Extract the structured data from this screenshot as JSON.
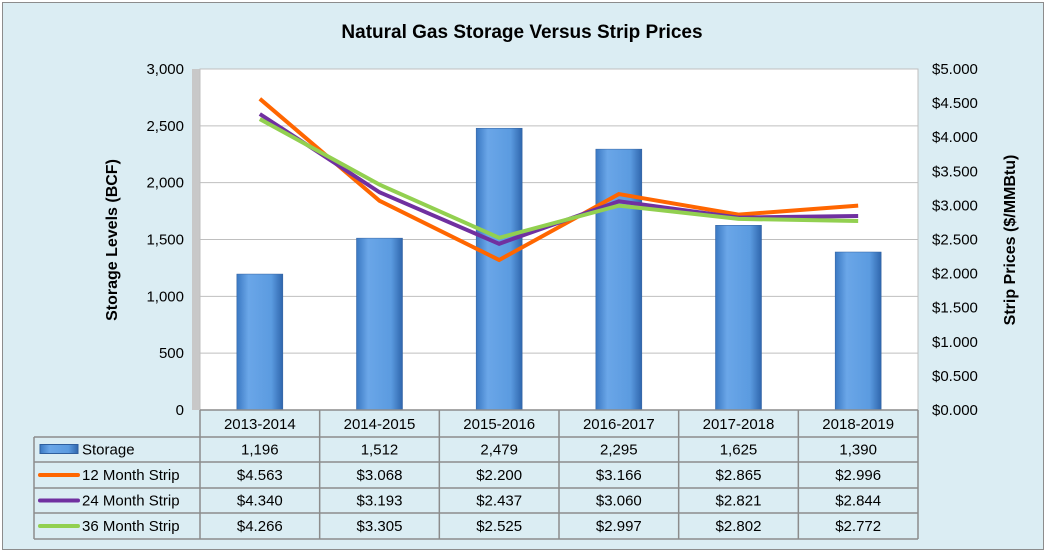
{
  "chart_data": {
    "type": "bar+line",
    "title": "Natural Gas Storage Versus Strip Prices",
    "ylabel": "Storage Levels (BCF)",
    "y2label": "Strip Prices ($/MMBtu)",
    "ylim": [
      0,
      3000
    ],
    "y2lim": [
      0,
      5
    ],
    "yticks": [
      "0",
      "500",
      "1,000",
      "1,500",
      "2,000",
      "2,500",
      "3,000"
    ],
    "y2ticks": [
      "$0.000",
      "$0.500",
      "$1.000",
      "$1.500",
      "$2.000",
      "$2.500",
      "$3.000",
      "$3.500",
      "$4.000",
      "$4.500",
      "$5.000"
    ],
    "grid": true,
    "legend": "data-table",
    "categories": [
      "2013-2014",
      "2014-2015",
      "2015-2016",
      "2016-2017",
      "2017-2018",
      "2018-2019"
    ],
    "series": [
      {
        "name": "Storage",
        "type": "bar",
        "axis": "left",
        "color": "#4f8fd6",
        "values": [
          1196,
          1512,
          2479,
          2295,
          1625,
          1390
        ],
        "labels": [
          "1,196",
          "1,512",
          "2,479",
          "2,295",
          "1,625",
          "1,390"
        ]
      },
      {
        "name": "12 Month Strip",
        "type": "line",
        "axis": "right",
        "color": "#ff6600",
        "values": [
          4.563,
          3.068,
          2.2,
          3.166,
          2.865,
          2.996
        ],
        "labels": [
          "$4.563",
          "$3.068",
          "$2.200",
          "$3.166",
          "$2.865",
          "$2.996"
        ]
      },
      {
        "name": "24 Month Strip",
        "type": "line",
        "axis": "right",
        "color": "#7030a0",
        "values": [
          4.34,
          3.193,
          2.437,
          3.06,
          2.821,
          2.844
        ],
        "labels": [
          "$4.340",
          "$3.193",
          "$2.437",
          "$3.060",
          "$2.821",
          "$2.844"
        ]
      },
      {
        "name": "36 Month Strip",
        "type": "line",
        "axis": "right",
        "color": "#92d050",
        "values": [
          4.266,
          3.305,
          2.525,
          2.997,
          2.802,
          2.772
        ],
        "labels": [
          "$4.266",
          "$3.305",
          "$2.525",
          "$2.997",
          "$2.802",
          "$2.772"
        ]
      }
    ]
  }
}
